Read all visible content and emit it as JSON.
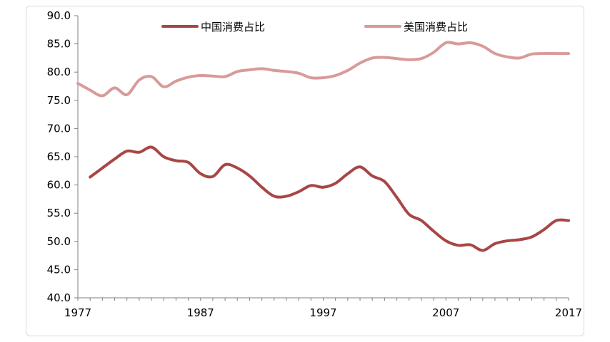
{
  "chart_data": {
    "type": "line",
    "title": "",
    "xlabel": "",
    "ylabel": "",
    "ylim": [
      40,
      90
    ],
    "yticks": [
      "40.0",
      "45.0",
      "50.0",
      "55.0",
      "60.0",
      "65.0",
      "70.0",
      "75.0",
      "80.0",
      "85.0",
      "90.0"
    ],
    "xlim": [
      1977,
      2017
    ],
    "xticks": [
      "1977",
      "1987",
      "1997",
      "2007",
      "2017"
    ],
    "grid": false,
    "legend_position": "top",
    "series": [
      {
        "name": "中国消费占比",
        "color": "#a84646",
        "x": [
          1978,
          1979,
          1980,
          1981,
          1982,
          1983,
          1984,
          1985,
          1986,
          1987,
          1988,
          1989,
          1990,
          1991,
          1992,
          1993,
          1994,
          1995,
          1996,
          1997,
          1998,
          1999,
          2000,
          2001,
          2002,
          2003,
          2004,
          2005,
          2006,
          2007,
          2008,
          2009,
          2010,
          2011,
          2012,
          2013,
          2014,
          2015,
          2016,
          2017
        ],
        "y": [
          61.4,
          63.0,
          64.6,
          66.0,
          65.8,
          66.7,
          65.0,
          64.3,
          64.0,
          62.0,
          61.5,
          63.6,
          63.0,
          61.6,
          59.6,
          58.0,
          58.0,
          58.8,
          59.9,
          59.6,
          60.3,
          62.0,
          63.2,
          61.6,
          60.6,
          57.8,
          54.8,
          53.7,
          51.8,
          50.1,
          49.3,
          49.4,
          48.4,
          49.6,
          50.1,
          50.3,
          50.8,
          52.1,
          53.7,
          53.7
        ]
      },
      {
        "name": "美国消费占比",
        "color": "#d99a9a",
        "x": [
          1977,
          1978,
          1979,
          1980,
          1981,
          1982,
          1983,
          1984,
          1985,
          1986,
          1987,
          1988,
          1989,
          1990,
          1991,
          1992,
          1993,
          1994,
          1995,
          1996,
          1997,
          1998,
          1999,
          2000,
          2001,
          2002,
          2003,
          2004,
          2005,
          2006,
          2007,
          2008,
          2009,
          2010,
          2011,
          2012,
          2013,
          2014,
          2015,
          2016,
          2017
        ],
        "y": [
          78.0,
          76.8,
          75.8,
          77.2,
          76.0,
          78.6,
          79.2,
          77.4,
          78.4,
          79.1,
          79.4,
          79.3,
          79.2,
          80.1,
          80.4,
          80.6,
          80.3,
          80.1,
          79.8,
          79.0,
          79.0,
          79.4,
          80.3,
          81.6,
          82.5,
          82.6,
          82.4,
          82.2,
          82.4,
          83.5,
          85.2,
          85.0,
          85.2,
          84.6,
          83.3,
          82.7,
          82.5,
          83.2,
          83.3,
          83.3,
          83.3
        ]
      }
    ]
  }
}
